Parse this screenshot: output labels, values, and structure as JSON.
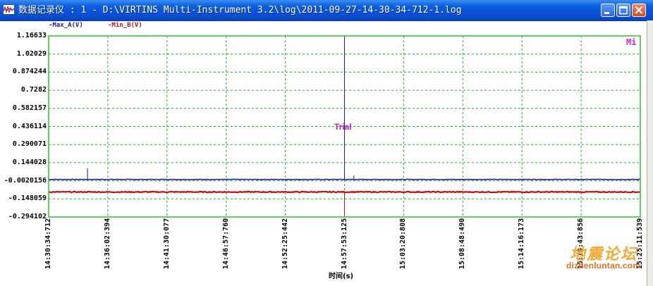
{
  "window": {
    "title": "数据记录仪 : 1 - D:\\VIRTINS Multi-Instrument 3.2\\log\\2011-09-27-14-30-34-712-1.log",
    "controls": [
      "minimize",
      "maximize",
      "close"
    ],
    "app_icon": "waveform-icon"
  },
  "legend": [
    {
      "label": "-Max_A(V)",
      "color": "#1a1aa0"
    },
    {
      "label": "-Min_B(V)",
      "color": "#c01010"
    }
  ],
  "chart_data": {
    "type": "line",
    "title": "",
    "xlabel": "时间(s)",
    "ylabel": "",
    "ylim": [
      -0.294102,
      1.16633
    ],
    "y_ticks": [
      "1.16633",
      "1.02029",
      "0.874244",
      "0.7282",
      "0.582157",
      "0.436114",
      "0.290071",
      "0.144028",
      "-0.0020156",
      "-0.148059",
      "-0.294102"
    ],
    "y_tick_values": [
      1.16633,
      1.02029,
      0.874244,
      0.7282,
      0.582157,
      0.436114,
      0.290071,
      0.144028,
      -0.0020156,
      -0.148059,
      -0.294102
    ],
    "x_ticks": [
      "14:30:34:712",
      "14:36:02:394",
      "14:41:30:077",
      "14:46:57:760",
      "14:52:25:442",
      "14:57:53:125",
      "15:03:20:808",
      "15:08:48:490",
      "15:14:16:173",
      "15:19:43:856",
      "15:25:11:539"
    ],
    "grid": true,
    "grid_color": "#20b020",
    "frame_color": "#30c030",
    "series": [
      {
        "name": "Max_A(V)",
        "color": "#1a1aa0",
        "baseline": 0.0085,
        "noise": 0.002,
        "spikes": [
          {
            "t": "14:34:10",
            "value": 0.1
          },
          {
            "t": "14:57:53",
            "value": 1.16633
          },
          {
            "t": "14:58:45",
            "value": 0.04
          }
        ]
      },
      {
        "name": "Min_B(V)",
        "color": "#c01010",
        "baseline": -0.0925,
        "noise": 0.004,
        "spikes": [
          {
            "t": "14:57:53",
            "value": -0.294102
          }
        ]
      }
    ],
    "annotations": [
      {
        "text": "Trial",
        "color": "#c020c0"
      },
      {
        "text": "Mi",
        "color": "#e020e0"
      }
    ]
  },
  "watermark": {
    "text": "地震论坛",
    "url": "dizhenluntan.com"
  }
}
